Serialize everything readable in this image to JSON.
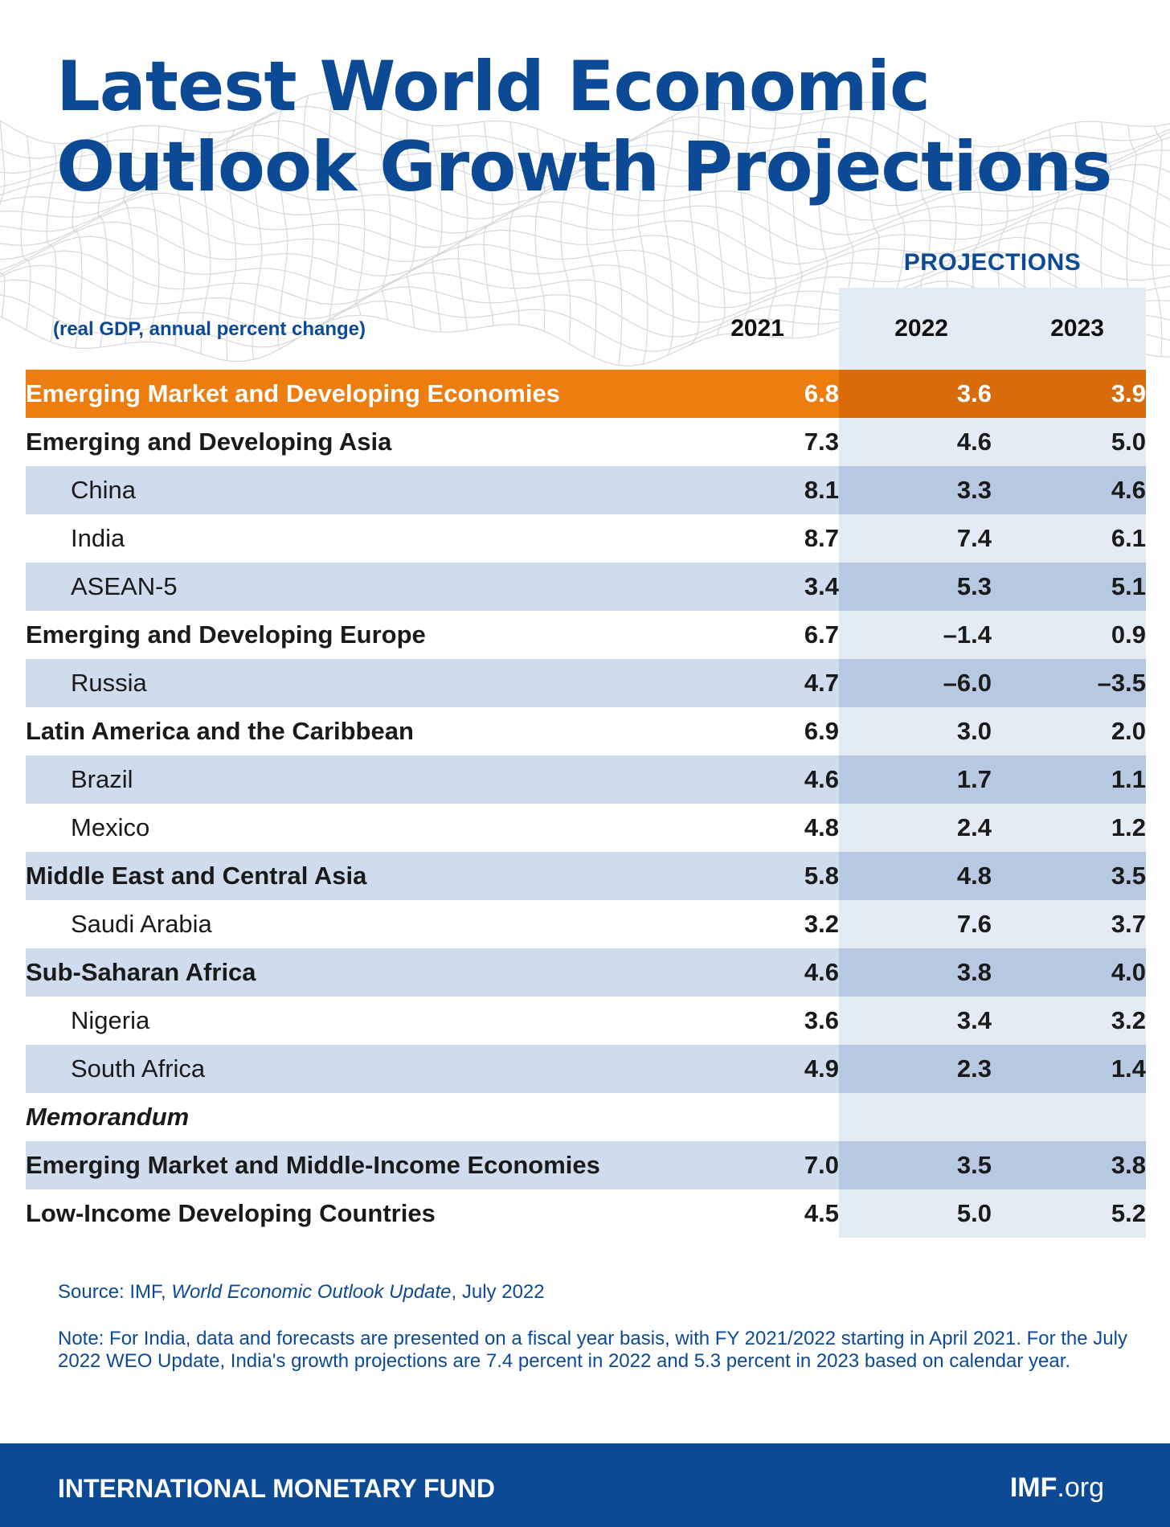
{
  "title": "Latest World Economic Outlook Growth Projections",
  "header": {
    "projections_label": "PROJECTIONS",
    "units": "(real GDP, annual percent change)",
    "years": [
      "2021",
      "2022",
      "2023"
    ]
  },
  "colors": {
    "brand_blue": "#0d4a96",
    "highlight_orange": "#ee7d10",
    "shade_blue": "#cfdced"
  },
  "rows": [
    {
      "name": "Emerging Market and Developing Economies",
      "style": "top",
      "indent": false,
      "values": [
        "6.8",
        "3.6",
        "3.9"
      ]
    },
    {
      "name": "Emerging and Developing Asia",
      "style": "bold",
      "indent": false,
      "values": [
        "7.3",
        "4.6",
        "5.0"
      ]
    },
    {
      "name": "China",
      "style": "normal",
      "indent": true,
      "values": [
        "8.1",
        "3.3",
        "4.6"
      ]
    },
    {
      "name": "India",
      "style": "normal",
      "indent": true,
      "values": [
        "8.7",
        "7.4",
        "6.1"
      ]
    },
    {
      "name": "ASEAN-5",
      "style": "normal",
      "indent": true,
      "values": [
        "3.4",
        "5.3",
        "5.1"
      ]
    },
    {
      "name": "Emerging and Developing Europe",
      "style": "bold",
      "indent": false,
      "values": [
        "6.7",
        "–1.4",
        "0.9"
      ]
    },
    {
      "name": "Russia",
      "style": "normal",
      "indent": true,
      "values": [
        "4.7",
        "–6.0",
        "–3.5"
      ]
    },
    {
      "name": "Latin America and the Caribbean",
      "style": "bold",
      "indent": false,
      "values": [
        "6.9",
        "3.0",
        "2.0"
      ]
    },
    {
      "name": "Brazil",
      "style": "normal",
      "indent": true,
      "values": [
        "4.6",
        "1.7",
        "1.1"
      ]
    },
    {
      "name": "Mexico",
      "style": "normal",
      "indent": true,
      "values": [
        "4.8",
        "2.4",
        "1.2"
      ]
    },
    {
      "name": "Middle East and Central Asia",
      "style": "bold",
      "indent": false,
      "values": [
        "5.8",
        "4.8",
        "3.5"
      ]
    },
    {
      "name": "Saudi Arabia",
      "style": "normal",
      "indent": true,
      "values": [
        "3.2",
        "7.6",
        "3.7"
      ]
    },
    {
      "name": "Sub-Saharan Africa",
      "style": "bold",
      "indent": false,
      "values": [
        "4.6",
        "3.8",
        "4.0"
      ]
    },
    {
      "name": "Nigeria",
      "style": "normal",
      "indent": true,
      "values": [
        "3.6",
        "3.4",
        "3.2"
      ]
    },
    {
      "name": "South Africa",
      "style": "normal",
      "indent": true,
      "values": [
        "4.9",
        "2.3",
        "1.4"
      ]
    },
    {
      "name": "Memorandum",
      "style": "italic",
      "indent": false,
      "values": [
        "",
        "",
        ""
      ]
    },
    {
      "name": "Emerging Market and Middle-Income Economies",
      "style": "bold",
      "indent": false,
      "values": [
        "7.0",
        "3.5",
        "3.8"
      ]
    },
    {
      "name": "Low-Income Developing Countries",
      "style": "bold",
      "indent": false,
      "values": [
        "4.5",
        "5.0",
        "5.2"
      ]
    }
  ],
  "source": {
    "prefix": "Source: IMF, ",
    "title": "World Economic Outlook Update",
    "suffix": ", July 2022"
  },
  "note": "Note: For India, data and forecasts are presented on a fiscal year basis, with FY 2021/2022 starting in April 2021. For the July 2022 WEO Update, India's growth projections are 7.4 percent in 2022 and 5.3 percent in 2023 based on calendar year.",
  "footer": {
    "org": "INTERNATIONAL MONETARY FUND",
    "site_bold": "IMF",
    "site_rest": ".org"
  },
  "chart_data": {
    "type": "table",
    "title": "Latest World Economic Outlook Growth Projections",
    "columns": [
      "2021",
      "2022",
      "2023"
    ],
    "projection_columns": [
      "2022",
      "2023"
    ],
    "units": "(real GDP, annual percent change)",
    "rows": [
      {
        "name": "Emerging Market and Developing Economies",
        "values": [
          6.8,
          3.6,
          3.9
        ]
      },
      {
        "name": "Emerging and Developing Asia",
        "values": [
          7.3,
          4.6,
          5.0
        ]
      },
      {
        "name": "China",
        "values": [
          8.1,
          3.3,
          4.6
        ]
      },
      {
        "name": "India",
        "values": [
          8.7,
          7.4,
          6.1
        ]
      },
      {
        "name": "ASEAN-5",
        "values": [
          3.4,
          5.3,
          5.1
        ]
      },
      {
        "name": "Emerging and Developing Europe",
        "values": [
          6.7,
          -1.4,
          0.9
        ]
      },
      {
        "name": "Russia",
        "values": [
          4.7,
          -6.0,
          -3.5
        ]
      },
      {
        "name": "Latin America and the Caribbean",
        "values": [
          6.9,
          3.0,
          2.0
        ]
      },
      {
        "name": "Brazil",
        "values": [
          4.6,
          1.7,
          1.1
        ]
      },
      {
        "name": "Mexico",
        "values": [
          4.8,
          2.4,
          1.2
        ]
      },
      {
        "name": "Middle East and Central Asia",
        "values": [
          5.8,
          4.8,
          3.5
        ]
      },
      {
        "name": "Saudi Arabia",
        "values": [
          3.2,
          7.6,
          3.7
        ]
      },
      {
        "name": "Sub-Saharan Africa",
        "values": [
          4.6,
          3.8,
          4.0
        ]
      },
      {
        "name": "Nigeria",
        "values": [
          3.6,
          3.4,
          3.2
        ]
      },
      {
        "name": "South Africa",
        "values": [
          4.9,
          2.3,
          1.4
        ]
      },
      {
        "name": "Emerging Market and Middle-Income Economies",
        "values": [
          7.0,
          3.5,
          3.8
        ]
      },
      {
        "name": "Low-Income Developing Countries",
        "values": [
          4.5,
          5.0,
          5.2
        ]
      }
    ]
  }
}
